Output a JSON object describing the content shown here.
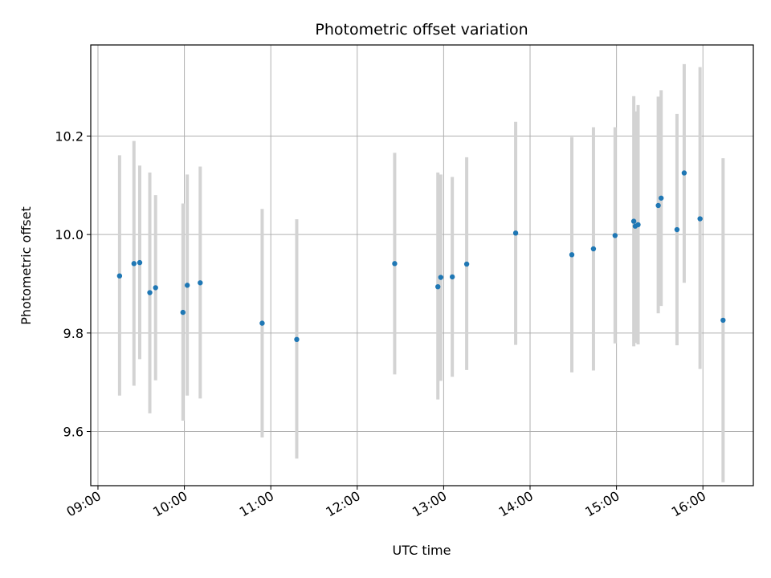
{
  "chart_data": {
    "type": "scatter",
    "title": "Photometric offset variation",
    "xlabel": "UTC time",
    "ylabel": "Photometric offset",
    "xlim": [
      "08:55",
      "16:35"
    ],
    "ylim": [
      9.49,
      10.385
    ],
    "grid": true,
    "x_ticks": [
      "09:00",
      "10:00",
      "11:00",
      "12:00",
      "13:00",
      "14:00",
      "15:00",
      "16:00"
    ],
    "y_ticks": [
      9.6,
      9.8,
      10.0,
      10.2
    ],
    "y_tick_labels": [
      "9.6",
      "9.8",
      "10.0",
      "10.2"
    ],
    "colors": {
      "point": "#1f77b4",
      "errorbar": "#d3d3d3",
      "grid": "#b0b0b0"
    },
    "points": [
      {
        "time": "09:15",
        "y": 9.916,
        "lo": 9.673,
        "hi": 10.161
      },
      {
        "time": "09:25",
        "y": 9.941,
        "lo": 9.693,
        "hi": 10.19
      },
      {
        "time": "09:29",
        "y": 9.943,
        "lo": 9.747,
        "hi": 10.14
      },
      {
        "time": "09:36",
        "y": 9.882,
        "lo": 9.637,
        "hi": 10.126
      },
      {
        "time": "09:40",
        "y": 9.892,
        "lo": 9.704,
        "hi": 10.08
      },
      {
        "time": "09:59",
        "y": 9.842,
        "lo": 9.622,
        "hi": 10.063
      },
      {
        "time": "10:02",
        "y": 9.897,
        "lo": 9.673,
        "hi": 10.122
      },
      {
        "time": "10:11",
        "y": 9.902,
        "lo": 9.667,
        "hi": 10.138
      },
      {
        "time": "10:54",
        "y": 9.82,
        "lo": 9.588,
        "hi": 10.052
      },
      {
        "time": "11:18",
        "y": 9.787,
        "lo": 9.545,
        "hi": 10.031
      },
      {
        "time": "12:26",
        "y": 9.941,
        "lo": 9.716,
        "hi": 10.166
      },
      {
        "time": "12:56",
        "y": 9.894,
        "lo": 9.665,
        "hi": 10.126
      },
      {
        "time": "12:58",
        "y": 9.913,
        "lo": 9.703,
        "hi": 10.122
      },
      {
        "time": "13:06",
        "y": 9.914,
        "lo": 9.711,
        "hi": 10.117
      },
      {
        "time": "13:16",
        "y": 9.94,
        "lo": 9.725,
        "hi": 10.157
      },
      {
        "time": "13:50",
        "y": 10.003,
        "lo": 9.776,
        "hi": 10.229
      },
      {
        "time": "14:29",
        "y": 9.959,
        "lo": 9.72,
        "hi": 10.198
      },
      {
        "time": "14:44",
        "y": 9.971,
        "lo": 9.724,
        "hi": 10.218
      },
      {
        "time": "14:59",
        "y": 9.998,
        "lo": 9.779,
        "hi": 10.218
      },
      {
        "time": "15:12",
        "y": 10.027,
        "lo": 9.773,
        "hi": 10.281
      },
      {
        "time": "15:13",
        "y": 10.017,
        "lo": 9.78,
        "hi": 10.25
      },
      {
        "time": "15:15",
        "y": 10.02,
        "lo": 9.777,
        "hi": 10.263
      },
      {
        "time": "15:29",
        "y": 10.059,
        "lo": 9.84,
        "hi": 10.28
      },
      {
        "time": "15:31",
        "y": 10.074,
        "lo": 9.855,
        "hi": 10.293
      },
      {
        "time": "15:42",
        "y": 10.01,
        "lo": 9.775,
        "hi": 10.245
      },
      {
        "time": "15:47",
        "y": 10.125,
        "lo": 9.902,
        "hi": 10.346
      },
      {
        "time": "15:58",
        "y": 10.032,
        "lo": 9.727,
        "hi": 10.34
      },
      {
        "time": "16:14",
        "y": 9.826,
        "lo": 9.497,
        "hi": 10.155
      }
    ]
  }
}
